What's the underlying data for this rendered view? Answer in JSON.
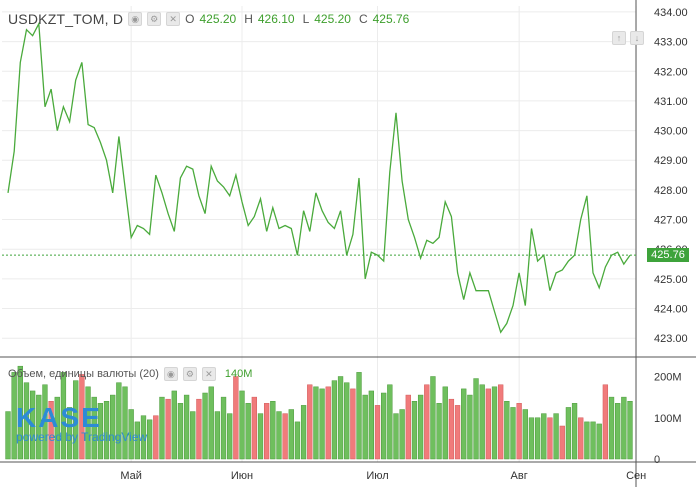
{
  "header": {
    "symbol": "USDKZT_TOM, D",
    "open_label": "O",
    "open": "425.20",
    "high_label": "H",
    "high": "426.10",
    "low_label": "L",
    "low": "425.20",
    "close_label": "C",
    "close": "425.76"
  },
  "volume_legend": {
    "label": "Объем, единицы валюты (20)",
    "value": "140M"
  },
  "last_price": "425.76",
  "logo": {
    "text": "KASE",
    "powered": "powered by TradingView"
  },
  "colors": {
    "line": "#4aaa3c",
    "up": "#6fbf5e",
    "down": "#f07b7b",
    "grid": "#ececec",
    "last": "#3ea33b"
  },
  "chart_data": {
    "type": "line",
    "series": [
      {
        "values": [
          427.9,
          429.3,
          432.3,
          433.4,
          433.2,
          433.6,
          430.8,
          431.4,
          430.0,
          430.8,
          430.3,
          431.7,
          432.3,
          430.2,
          430.1,
          429.6,
          429.0,
          427.9,
          429.8,
          428.1,
          426.4,
          426.8,
          426.7,
          426.5,
          428.5,
          427.9,
          427.2,
          426.6,
          428.4,
          428.8,
          428.7,
          427.8,
          427.2,
          428.8,
          428.3,
          428.1,
          427.8,
          428.5,
          427.6,
          426.8,
          427.1,
          427.7,
          426.6,
          427.4,
          426.7,
          426.8,
          426.7,
          425.8,
          427.3,
          426.6,
          427.9,
          427.3,
          426.9,
          426.7,
          427.3,
          425.8,
          426.5,
          428.4,
          425.0,
          425.9,
          425.8,
          425.6,
          428.6,
          430.6,
          428.3,
          427.0,
          426.4,
          425.7,
          426.3,
          426.2,
          426.4,
          427.6,
          427.1,
          425.2,
          424.3,
          425.2,
          424.6,
          424.6,
          424.6,
          423.9,
          423.2,
          423.5,
          424.1,
          425.2,
          424.1,
          426.7,
          425.6,
          425.8,
          424.6,
          425.2,
          425.3,
          425.6,
          425.8,
          427.0,
          427.8,
          425.2,
          424.7,
          425.4,
          425.8,
          425.9,
          425.5,
          425.8
        ]
      }
    ],
    "volume": {
      "values": [
        115,
        210,
        225,
        185,
        165,
        155,
        180,
        140,
        150,
        210,
        125,
        190,
        205,
        175,
        150,
        135,
        140,
        155,
        185,
        175,
        120,
        90,
        105,
        95,
        105,
        150,
        145,
        165,
        135,
        155,
        115,
        145,
        160,
        175,
        115,
        150,
        110,
        200,
        165,
        135,
        150,
        110,
        135,
        140,
        115,
        110,
        120,
        90,
        130,
        180,
        175,
        170,
        175,
        190,
        200,
        185,
        170,
        210,
        155,
        165,
        130,
        160,
        180,
        110,
        120,
        155,
        140,
        155,
        180,
        200,
        135,
        175,
        145,
        130,
        170,
        155,
        195,
        180,
        170,
        175,
        180,
        140,
        125,
        135,
        120,
        100,
        100,
        110,
        100,
        110,
        80,
        125,
        135,
        100,
        90,
        90,
        85,
        180,
        150,
        135,
        150,
        140
      ],
      "direction": [
        "u",
        "u",
        "u",
        "u",
        "u",
        "u",
        "u",
        "d",
        "u",
        "u",
        "u",
        "u",
        "d",
        "u",
        "u",
        "u",
        "u",
        "u",
        "u",
        "u",
        "u",
        "u",
        "u",
        "u",
        "d",
        "u",
        "d",
        "u",
        "u",
        "u",
        "u",
        "d",
        "u",
        "u",
        "u",
        "u",
        "u",
        "d",
        "u",
        "u",
        "d",
        "u",
        "d",
        "u",
        "u",
        "d",
        "u",
        "u",
        "u",
        "d",
        "u",
        "u",
        "d",
        "u",
        "u",
        "u",
        "d",
        "u",
        "u",
        "u",
        "d",
        "u",
        "u",
        "u",
        "u",
        "d",
        "u",
        "u",
        "d",
        "u",
        "u",
        "u",
        "d",
        "d",
        "u",
        "u",
        "u",
        "u",
        "d",
        "u",
        "d",
        "u",
        "u",
        "d",
        "u",
        "u",
        "u",
        "u",
        "d",
        "u",
        "d",
        "u",
        "u",
        "d",
        "u",
        "u",
        "u",
        "d",
        "u",
        "u",
        "u",
        "u"
      ]
    },
    "price_axis": {
      "ticks": [
        423.0,
        424.0,
        425.0,
        426.0,
        427.0,
        428.0,
        429.0,
        430.0,
        431.0,
        432.0,
        433.0,
        434.0
      ],
      "range": [
        422.4,
        434.2
      ]
    },
    "volume_axis": {
      "ticks": [
        "0",
        "100M",
        "200M"
      ],
      "range": [
        0,
        240
      ]
    },
    "x_axis": {
      "ticks": [
        {
          "label": "Май",
          "idx": 20
        },
        {
          "label": "Июн",
          "idx": 38
        },
        {
          "label": "Июл",
          "idx": 60
        },
        {
          "label": "Авг",
          "idx": 83
        },
        {
          "label": "Сен",
          "idx": 102
        }
      ]
    }
  }
}
